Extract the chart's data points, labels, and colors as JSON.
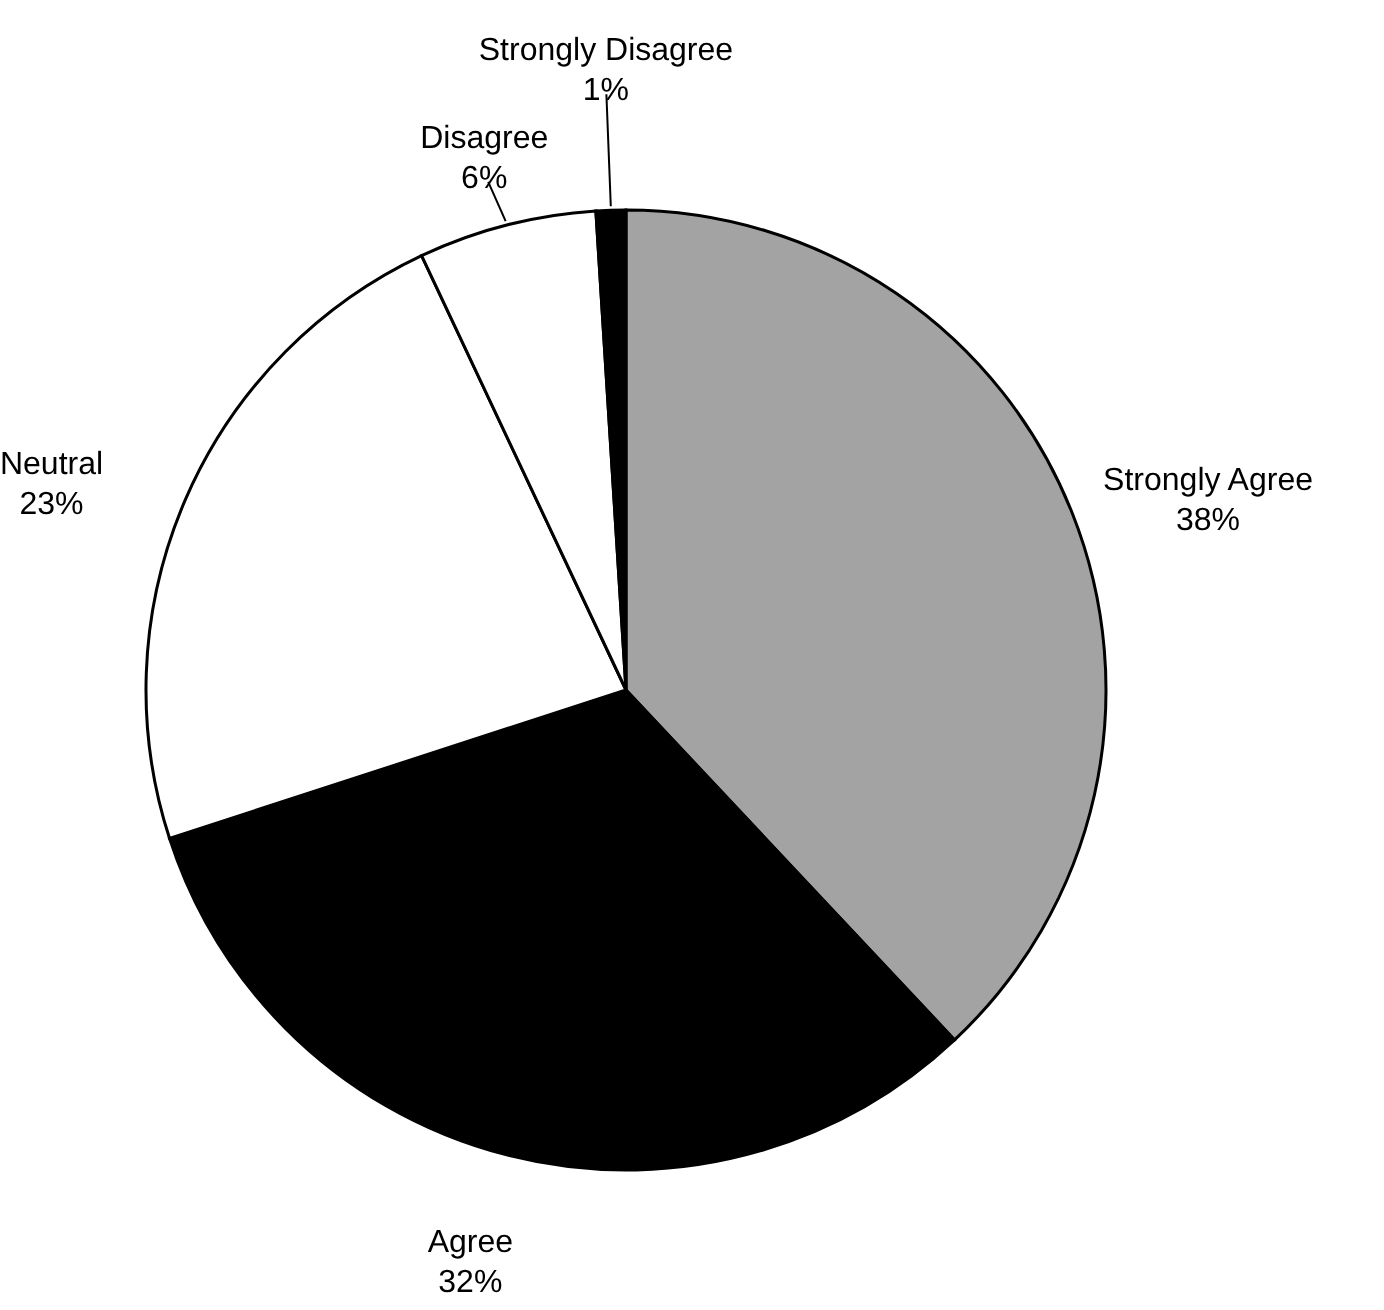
{
  "chart_data": {
    "type": "pie",
    "categories": [
      "Strongly Agree",
      "Agree",
      "Neutral",
      "Disagree",
      "Strongly Disagree"
    ],
    "values": [
      38,
      32,
      23,
      6,
      1
    ],
    "colors": [
      "#a3a3a3",
      "#000000",
      "#ffffff",
      "#ffffff",
      "#000000"
    ],
    "value_labels": [
      "38%",
      "32%",
      "23%",
      "6%",
      "1%"
    ]
  }
}
